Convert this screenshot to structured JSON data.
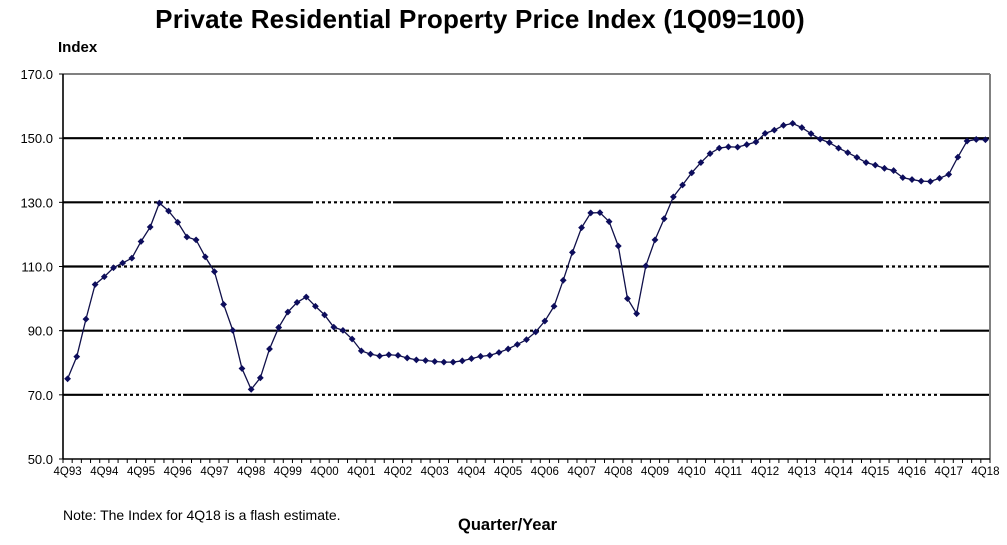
{
  "chart_data": {
    "type": "line",
    "title": "Private Residential Property Price Index (1Q09=100)",
    "xlabel": "Quarter/Year",
    "ylabel": "Index",
    "note": "Note: The Index for 4Q18 is a flash estimate.",
    "ylim": [
      50,
      170
    ],
    "yticks": [
      50,
      70,
      90,
      110,
      130,
      150,
      170
    ],
    "ytick_labels": [
      "50.0",
      "70.0",
      "90.0",
      "110.0",
      "130.0",
      "150.0",
      "170.0"
    ],
    "xtick_labels": [
      "4Q93",
      "4Q94",
      "4Q95",
      "4Q96",
      "4Q97",
      "4Q98",
      "4Q99",
      "4Q00",
      "4Q01",
      "4Q02",
      "4Q03",
      "4Q04",
      "4Q05",
      "4Q06",
      "4Q07",
      "4Q08",
      "4Q09",
      "4Q10",
      "4Q11",
      "4Q12",
      "4Q13",
      "4Q14",
      "4Q15",
      "4Q16",
      "4Q17",
      "4Q18"
    ],
    "grid": "horizontal",
    "legend": "none",
    "colors": {
      "line": "#10104a",
      "marker": "#0d0d5c",
      "grid": "#000000",
      "frame": "#808080"
    },
    "x": [
      "4Q93",
      "1Q94",
      "2Q94",
      "3Q94",
      "4Q94",
      "1Q95",
      "2Q95",
      "3Q95",
      "4Q95",
      "1Q96",
      "2Q96",
      "3Q96",
      "4Q96",
      "1Q97",
      "2Q97",
      "3Q97",
      "4Q97",
      "1Q98",
      "2Q98",
      "3Q98",
      "4Q98",
      "1Q99",
      "2Q99",
      "3Q99",
      "4Q99",
      "1Q00",
      "2Q00",
      "3Q00",
      "4Q00",
      "1Q01",
      "2Q01",
      "3Q01",
      "4Q01",
      "1Q02",
      "2Q02",
      "3Q02",
      "4Q02",
      "1Q03",
      "2Q03",
      "3Q03",
      "4Q03",
      "1Q04",
      "2Q04",
      "3Q04",
      "4Q04",
      "1Q05",
      "2Q05",
      "3Q05",
      "4Q05",
      "1Q06",
      "2Q06",
      "3Q06",
      "4Q06",
      "1Q07",
      "2Q07",
      "3Q07",
      "4Q07",
      "1Q08",
      "2Q08",
      "3Q08",
      "4Q08",
      "1Q09",
      "2Q09",
      "3Q09",
      "4Q09",
      "1Q10",
      "2Q10",
      "3Q10",
      "4Q10",
      "1Q11",
      "2Q11",
      "3Q11",
      "4Q11",
      "1Q12",
      "2Q12",
      "3Q12",
      "4Q12",
      "1Q13",
      "2Q13",
      "3Q13",
      "4Q13",
      "1Q14",
      "2Q14",
      "3Q14",
      "4Q14",
      "1Q15",
      "2Q15",
      "3Q15",
      "4Q15",
      "1Q16",
      "2Q16",
      "3Q16",
      "4Q16",
      "1Q17",
      "2Q17",
      "3Q17",
      "4Q17",
      "1Q18",
      "2Q18",
      "3Q18",
      "4Q18"
    ],
    "series": [
      {
        "name": "Private Residential Property Price Index",
        "values": [
          75.0,
          81.9,
          93.6,
          104.4,
          106.8,
          109.6,
          111.1,
          112.6,
          117.8,
          122.3,
          129.8,
          127.3,
          123.8,
          119.2,
          118.3,
          113.0,
          108.4,
          98.2,
          90.1,
          78.2,
          71.7,
          75.3,
          84.3,
          91.0,
          95.8,
          98.8,
          100.5,
          97.6,
          94.9,
          91.1,
          90.1,
          87.4,
          83.7,
          82.7,
          82.1,
          82.5,
          82.3,
          81.5,
          80.9,
          80.7,
          80.4,
          80.2,
          80.2,
          80.6,
          81.3,
          82.0,
          82.3,
          83.2,
          84.3,
          85.7,
          87.2,
          89.6,
          93.0,
          97.6,
          105.7,
          114.4,
          122.1,
          126.7,
          126.8,
          124.0,
          116.4,
          100.0,
          95.3,
          110.2,
          118.3,
          124.9,
          131.7,
          135.4,
          139.2,
          142.4,
          145.2,
          146.9,
          147.3,
          147.2,
          148.0,
          148.8,
          151.5,
          152.5,
          154.0,
          154.6,
          153.3,
          151.4,
          149.7,
          148.6,
          146.9,
          145.5,
          144.0,
          142.4,
          141.6,
          140.6,
          139.9,
          137.7,
          137.1,
          136.6,
          136.5,
          137.5,
          138.7,
          144.1,
          149.1,
          149.6,
          149.5
        ]
      }
    ]
  }
}
